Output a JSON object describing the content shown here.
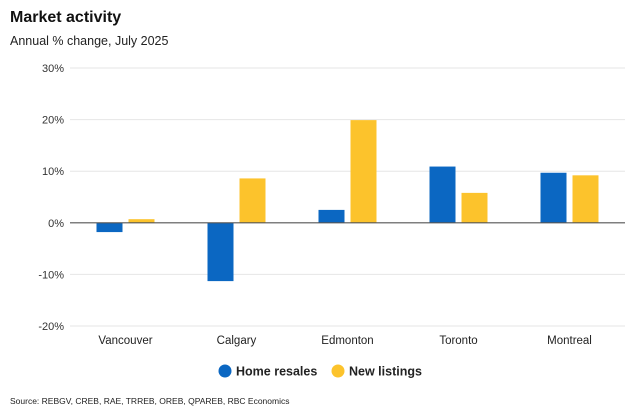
{
  "title": "Market activity",
  "subtitle": "Annual % change, July 2025",
  "source": "Source: REBGV, CREB, RAE, TRREB, OREB, QPAREB, RBC Economics",
  "colors": {
    "home_resales": "#0b67c2",
    "new_listings": "#fcc32c",
    "grid": "#e6e6e6",
    "zero_line": "#555555"
  },
  "chart_data": {
    "type": "bar",
    "categories": [
      "Vancouver",
      "Calgary",
      "Edmonton",
      "Toronto",
      "Montreal"
    ],
    "series": [
      {
        "name": "Home resales",
        "values": [
          -1.8,
          -11.3,
          2.5,
          10.9,
          9.7
        ]
      },
      {
        "name": "New listings",
        "values": [
          0.7,
          8.6,
          19.9,
          5.8,
          9.2
        ]
      }
    ],
    "ylim": [
      -20,
      30
    ],
    "yticks": [
      -20,
      -10,
      0,
      10,
      20,
      30
    ],
    "ytick_labels": [
      "-20%",
      "-10%",
      "0%",
      "10%",
      "20%",
      "30%"
    ],
    "grid": true,
    "legend_position": "bottom-center"
  }
}
